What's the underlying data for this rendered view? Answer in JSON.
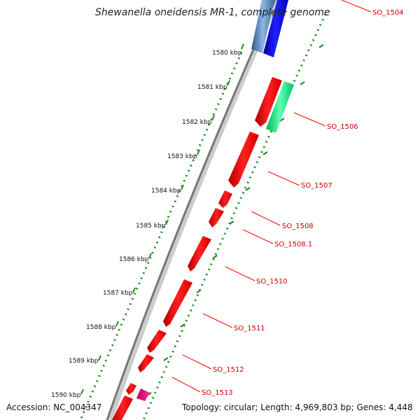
{
  "title": "Shewanella oneidensis MR-1, complete genome",
  "footer": {
    "accession": "Accession: NC_004347",
    "summary": "Topology: circular; Length: 4,969,803 bp; Genes: 4,448"
  },
  "ruler": [
    "1580 kbp",
    "1581 kbp",
    "1582 kbp",
    "1583 kbp",
    "1584 kbp",
    "1585 kbp",
    "1586 kbp",
    "1587 kbp",
    "1588 kbp",
    "1589 kbp",
    "1590 kbp"
  ],
  "genes": [
    {
      "label": "SO_1504"
    },
    {
      "label": "SO_1506"
    },
    {
      "label": "SO_1507"
    },
    {
      "label": "SO_1508"
    },
    {
      "label": "SO_1508.1"
    },
    {
      "label": "SO_1510"
    },
    {
      "label": "SO_1511"
    },
    {
      "label": "SO_1512"
    },
    {
      "label": "SO_1513"
    }
  ],
  "colors": {
    "gene_red": "#ff0000",
    "gene_blue": "#0000ff",
    "gene_steel": "#4a7fc0",
    "gene_green": "#00ee88",
    "gene_magenta": "#ff1493",
    "dots": "#1a8a1a",
    "backbone": "#777777",
    "label_red": "#cc0000"
  }
}
